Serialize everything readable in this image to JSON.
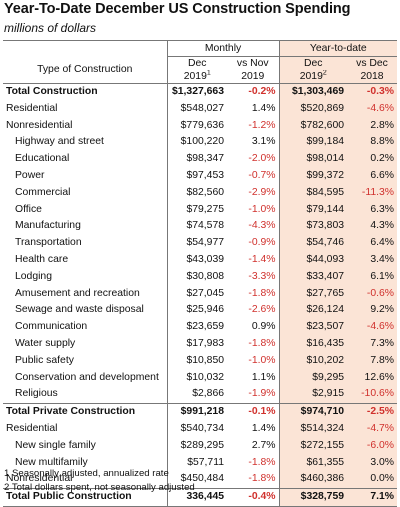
{
  "title": "Year-To-Date December US Construction Spending",
  "subtitle": "millions of dollars",
  "header": {
    "type_label": "Type of Construction",
    "monthly_label": "Monthly",
    "ytd_label": "Year-to-date",
    "col1_l1": "Dec",
    "col1_l2": "2019",
    "col1_sup": "1",
    "col2_l1": "vs Nov",
    "col2_l2": "2019",
    "col3_l1": "Dec",
    "col3_l2": "2019",
    "col3_sup": "2",
    "col4_l1": "vs Dec",
    "col4_l2": "2018"
  },
  "rows": [
    {
      "label": "Total Construction",
      "m": "$1,327,663",
      "mp": "-0.2%",
      "y": "$1,303,469",
      "yp": "-0.3%",
      "bold": true
    },
    {
      "label": "Residential",
      "m": "$548,027",
      "mp": "1.4%",
      "y": "$520,869",
      "yp": "-4.6%"
    },
    {
      "label": "Nonresidential",
      "m": "$779,636",
      "mp": "-1.2%",
      "y": "$782,600",
      "yp": "2.8%"
    },
    {
      "label": "Highway and street",
      "m": "$100,220",
      "mp": "3.1%",
      "y": "$99,184",
      "yp": "8.8%",
      "indent": true
    },
    {
      "label": "Educational",
      "m": "$98,347",
      "mp": "-2.0%",
      "y": "$98,014",
      "yp": "0.2%",
      "indent": true
    },
    {
      "label": "Power",
      "m": "$97,453",
      "mp": "-0.7%",
      "y": "$99,372",
      "yp": "6.6%",
      "indent": true
    },
    {
      "label": "Commercial",
      "m": "$82,560",
      "mp": "-2.9%",
      "y": "$84,595",
      "yp": "-11.3%",
      "indent": true
    },
    {
      "label": "Office",
      "m": "$79,275",
      "mp": "-1.0%",
      "y": "$79,144",
      "yp": "6.3%",
      "indent": true
    },
    {
      "label": "Manufacturing",
      "m": "$74,578",
      "mp": "-4.3%",
      "y": "$73,803",
      "yp": "4.3%",
      "indent": true
    },
    {
      "label": "Transportation",
      "m": "$54,977",
      "mp": "-0.9%",
      "y": "$54,746",
      "yp": "6.4%",
      "indent": true
    },
    {
      "label": "Health care",
      "m": "$43,039",
      "mp": "-1.4%",
      "y": "$44,093",
      "yp": "3.4%",
      "indent": true
    },
    {
      "label": "Lodging",
      "m": "$30,808",
      "mp": "-3.3%",
      "y": "$33,407",
      "yp": "6.1%",
      "indent": true
    },
    {
      "label": "Amusement and recreation",
      "m": "$27,045",
      "mp": "-1.8%",
      "y": "$27,765",
      "yp": "-0.6%",
      "indent": true
    },
    {
      "label": "Sewage and waste disposal",
      "m": "$25,946",
      "mp": "-2.6%",
      "y": "$26,124",
      "yp": "9.2%",
      "indent": true
    },
    {
      "label": "Communication",
      "m": "$23,659",
      "mp": "0.9%",
      "y": "$23,507",
      "yp": "-4.6%",
      "indent": true
    },
    {
      "label": "Water supply",
      "m": "$17,983",
      "mp": "-1.8%",
      "y": "$16,435",
      "yp": "7.3%",
      "indent": true
    },
    {
      "label": "Public safety",
      "m": "$10,850",
      "mp": "-1.0%",
      "y": "$10,202",
      "yp": "7.8%",
      "indent": true
    },
    {
      "label": "Conservation and development",
      "m": "$10,032",
      "mp": "1.1%",
      "y": "$9,295",
      "yp": "12.6%",
      "indent": true
    },
    {
      "label": "Religious",
      "m": "$2,866",
      "mp": "-1.9%",
      "y": "$2,915",
      "yp": "-10.6%",
      "indent": true
    },
    {
      "label": "Total Private Construction",
      "m": "$991,218",
      "mp": "-0.1%",
      "y": "$974,710",
      "yp": "-2.5%",
      "bold": true,
      "topline": true
    },
    {
      "label": "Residential",
      "m": "$540,734",
      "mp": "1.4%",
      "y": "$514,324",
      "yp": "-4.7%"
    },
    {
      "label": "New single family",
      "m": "$289,295",
      "mp": "2.7%",
      "y": "$272,155",
      "yp": "-6.0%",
      "indent": true
    },
    {
      "label": "New multifamily",
      "m": "$57,711",
      "mp": "-1.8%",
      "y": "$61,355",
      "yp": "3.0%",
      "indent": true
    },
    {
      "label": "Nonresidential",
      "m": "$450,484",
      "mp": "-1.8%",
      "y": "$460,386",
      "yp": "0.0%"
    },
    {
      "label": "Total Public Construction",
      "m": "336,445",
      "mp": "-0.4%",
      "y": "$328,759",
      "yp": "7.1%",
      "bold": true,
      "topline": true
    }
  ],
  "footnotes": [
    "1 Seasonally adjusted, annualized rate",
    "2 Total dollars spent, not seasonally adjusted"
  ],
  "colors": {
    "negative": "#d0312d",
    "ytd_fill": "#fbe4d6"
  }
}
